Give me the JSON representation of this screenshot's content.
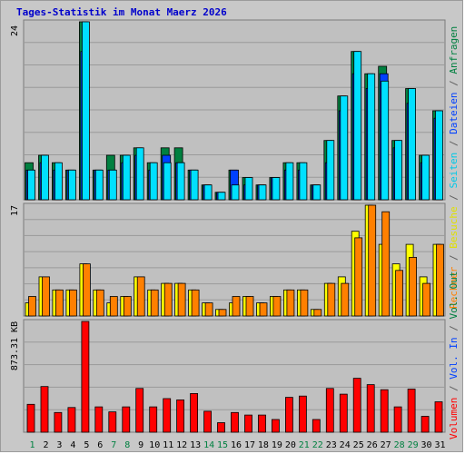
{
  "title": "Tages-Statistik im Monat Maerz 2026",
  "colors": {
    "background": "#c0c0c0",
    "title": "#0000cc",
    "anfragen": "#008040",
    "dateien": "#0040ff",
    "seiten": "#00e0ff",
    "besuche": "#ffff00",
    "rechner": "#ff8000",
    "volumen": "#ff0000",
    "legend_sep": "#606060",
    "label_black": "#000000",
    "label_weekend": "#008040"
  },
  "right_legend": {
    "top": [
      "Anfragen",
      "Dateien",
      "Seiten",
      "Besuche",
      "Rechner"
    ],
    "bottom": [
      "Vol. Out",
      "Vol. In",
      "Volumen"
    ],
    "separator": "/"
  },
  "chart_data": [
    {
      "type": "bar",
      "id": "requests",
      "ylabel": "24",
      "ylim": [
        0,
        24
      ],
      "categories": [
        "1",
        "2",
        "3",
        "4",
        "5",
        "6",
        "7",
        "8",
        "9",
        "10",
        "11",
        "12",
        "13",
        "14",
        "15",
        "16",
        "17",
        "18",
        "19",
        "20",
        "21",
        "22",
        "23",
        "24",
        "25",
        "26",
        "27",
        "28",
        "29",
        "30",
        "31"
      ],
      "series": [
        {
          "name": "Anfragen",
          "values": [
            5,
            6,
            5,
            4,
            24,
            4,
            6,
            6,
            7,
            5,
            7,
            7,
            4,
            2,
            1,
            4,
            3,
            2,
            3,
            5,
            5,
            2,
            8,
            14,
            20,
            17,
            18,
            8,
            15,
            6,
            12
          ]
        },
        {
          "name": "Dateien",
          "values": [
            4,
            5,
            4,
            4,
            20,
            4,
            4,
            5,
            6,
            4,
            6,
            5,
            4,
            2,
            1,
            4,
            2,
            2,
            3,
            4,
            4,
            2,
            5,
            12,
            17,
            15,
            17,
            7,
            13,
            5,
            11
          ]
        },
        {
          "name": "Seiten",
          "values": [
            4,
            6,
            5,
            4,
            24,
            4,
            4,
            6,
            7,
            5,
            5,
            5,
            4,
            2,
            1,
            2,
            3,
            2,
            3,
            5,
            5,
            2,
            8,
            14,
            20,
            17,
            16,
            8,
            15,
            6,
            12
          ]
        }
      ]
    },
    {
      "type": "bar",
      "id": "visits",
      "ylabel": "17",
      "ylim": [
        0,
        17
      ],
      "categories": [
        "1",
        "2",
        "3",
        "4",
        "5",
        "6",
        "7",
        "8",
        "9",
        "10",
        "11",
        "12",
        "13",
        "14",
        "15",
        "16",
        "17",
        "18",
        "19",
        "20",
        "21",
        "22",
        "23",
        "24",
        "25",
        "26",
        "27",
        "28",
        "29",
        "30",
        "31"
      ],
      "series": [
        {
          "name": "Besuche",
          "values": [
            2,
            6,
            4,
            4,
            8,
            4,
            2,
            3,
            6,
            4,
            5,
            5,
            4,
            2,
            1,
            2,
            3,
            2,
            3,
            4,
            4,
            1,
            5,
            6,
            13,
            17,
            11,
            8,
            11,
            6,
            11
          ]
        },
        {
          "name": "Rechner",
          "values": [
            3,
            6,
            4,
            4,
            8,
            4,
            3,
            3,
            6,
            4,
            5,
            5,
            4,
            2,
            1,
            3,
            3,
            2,
            3,
            4,
            4,
            1,
            5,
            5,
            12,
            17,
            16,
            7,
            9,
            5,
            11
          ]
        }
      ]
    },
    {
      "type": "bar",
      "id": "volume",
      "ylabel": "873.31 KB",
      "ylim": [
        0,
        873.31
      ],
      "categories": [
        "1",
        "2",
        "3",
        "4",
        "5",
        "6",
        "7",
        "8",
        "9",
        "10",
        "11",
        "12",
        "13",
        "14",
        "15",
        "16",
        "17",
        "18",
        "19",
        "20",
        "21",
        "22",
        "23",
        "24",
        "25",
        "26",
        "27",
        "28",
        "29",
        "30",
        "31"
      ],
      "series": [
        {
          "name": "Volumen",
          "values": [
            220,
            360,
            155,
            195,
            873,
            200,
            160,
            200,
            345,
            200,
            265,
            255,
            305,
            165,
            75,
            155,
            135,
            135,
            100,
            275,
            285,
            100,
            345,
            300,
            425,
            375,
            335,
            200,
            340,
            125,
            240
          ]
        }
      ]
    }
  ],
  "x_labels": [
    {
      "text": "1",
      "weekend": true
    },
    {
      "text": "2",
      "weekend": false
    },
    {
      "text": "3",
      "weekend": false
    },
    {
      "text": "4",
      "weekend": false
    },
    {
      "text": "5",
      "weekend": false
    },
    {
      "text": "6",
      "weekend": false
    },
    {
      "text": "7",
      "weekend": true
    },
    {
      "text": "8",
      "weekend": true
    },
    {
      "text": "9",
      "weekend": false
    },
    {
      "text": "10",
      "weekend": false
    },
    {
      "text": "11",
      "weekend": false
    },
    {
      "text": "12",
      "weekend": false
    },
    {
      "text": "13",
      "weekend": false
    },
    {
      "text": "14",
      "weekend": true
    },
    {
      "text": "15",
      "weekend": true
    },
    {
      "text": "16",
      "weekend": false
    },
    {
      "text": "17",
      "weekend": false
    },
    {
      "text": "18",
      "weekend": false
    },
    {
      "text": "19",
      "weekend": false
    },
    {
      "text": "20",
      "weekend": false
    },
    {
      "text": "21",
      "weekend": true
    },
    {
      "text": "22",
      "weekend": true
    },
    {
      "text": "23",
      "weekend": false
    },
    {
      "text": "24",
      "weekend": false
    },
    {
      "text": "25",
      "weekend": false
    },
    {
      "text": "26",
      "weekend": false
    },
    {
      "text": "27",
      "weekend": false
    },
    {
      "text": "28",
      "weekend": true
    },
    {
      "text": "29",
      "weekend": true
    },
    {
      "text": "30",
      "weekend": false
    },
    {
      "text": "31",
      "weekend": false
    }
  ]
}
